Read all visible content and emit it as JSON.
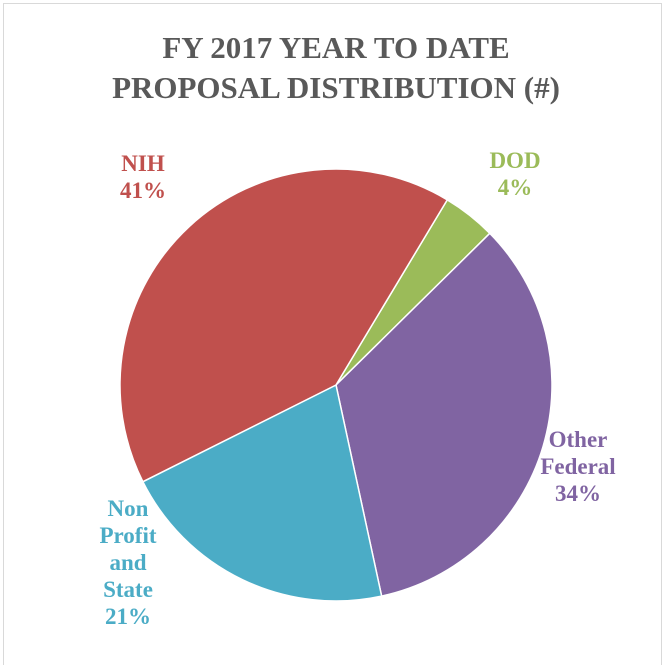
{
  "chart_data": {
    "type": "pie",
    "title": [
      "FY 2017 YEAR TO DATE",
      "PROPOSAL DISTRIBUTION (#)"
    ],
    "categories": [
      "DOD",
      "Other Federal",
      "Non Profit and State",
      "NIH"
    ],
    "values": [
      4,
      34,
      21,
      41
    ],
    "value_labels": [
      "4%",
      "34%",
      "21%",
      "41%"
    ],
    "colors": [
      "#9bbb59",
      "#8064a2",
      "#4bacc6",
      "#c0504d"
    ]
  }
}
